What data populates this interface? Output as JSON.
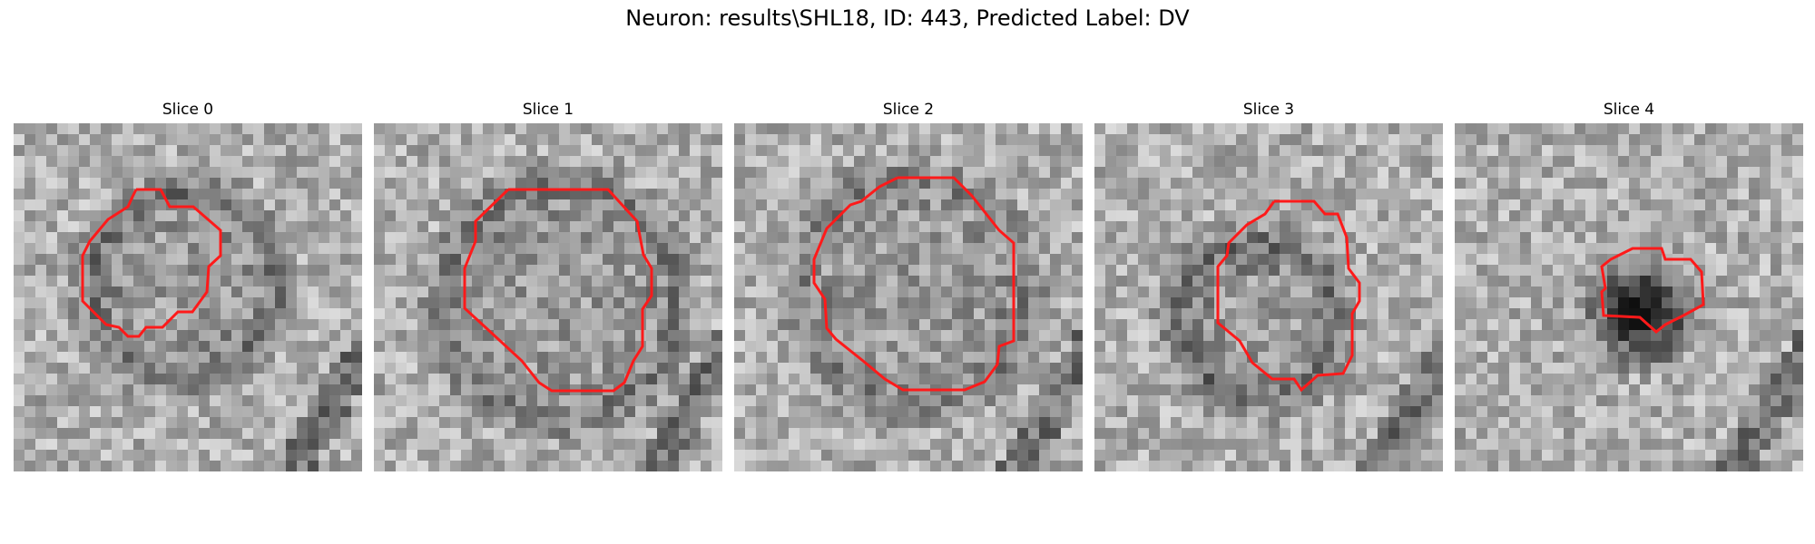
{
  "figure": {
    "title": "Neuron: results\\SHL18, ID: 443, Predicted Label: DV"
  },
  "colors": {
    "contour": "#ff1a1a",
    "background": "#ffffff"
  },
  "panels": [
    {
      "title": "Slice 0",
      "seed": 11,
      "dark_ring": true,
      "ring": 0.55,
      "center": [
        0.47,
        0.45
      ],
      "radius": 0.26,
      "blob": 0.8
    },
    {
      "title": "Slice 1",
      "seed": 23,
      "dark_ring": true,
      "ring": 0.5,
      "center": [
        0.52,
        0.5
      ],
      "radius": 0.33,
      "blob": 0.6
    },
    {
      "title": "Slice 2",
      "seed": 37,
      "dark_ring": true,
      "ring": 0.45,
      "center": [
        0.5,
        0.47
      ],
      "radius": 0.32,
      "blob": 0.6
    },
    {
      "title": "Slice 3",
      "seed": 41,
      "dark_ring": true,
      "ring": 0.6,
      "center": [
        0.45,
        0.55
      ],
      "radius": 0.22,
      "blob": 0.7
    },
    {
      "title": "Slice 4",
      "seed": 53,
      "dark_ring": false,
      "ring": 0.85,
      "center": [
        0.52,
        0.53
      ],
      "radius": 0.12,
      "blob": 1.0
    }
  ]
}
